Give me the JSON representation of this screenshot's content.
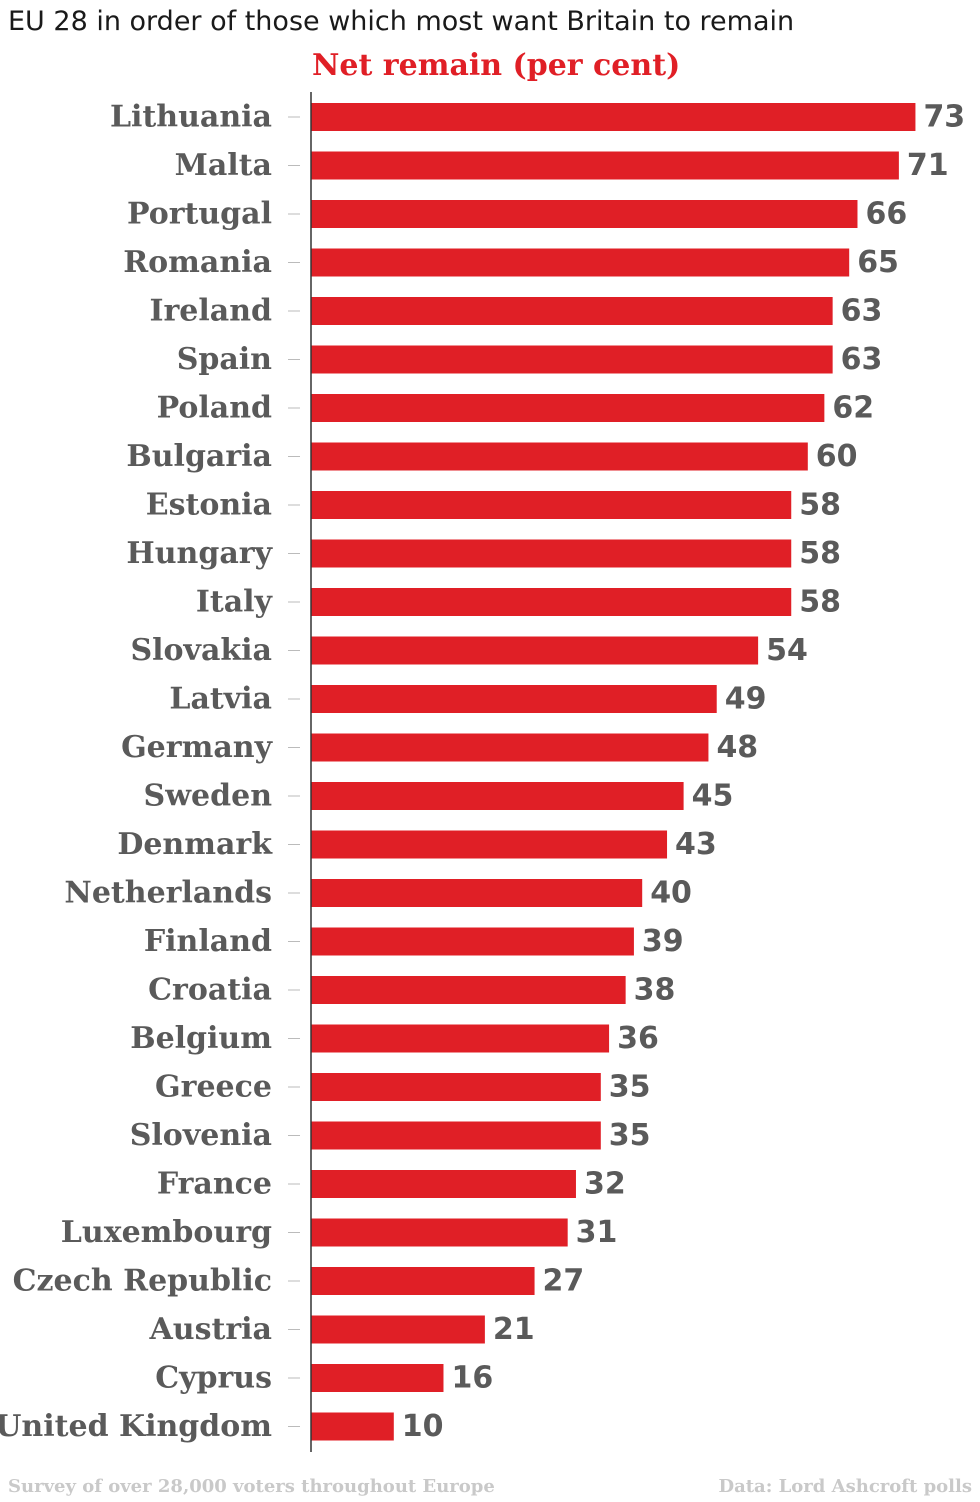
{
  "heading": "EU 28 in order of those which most want Britain to remain",
  "footer": {
    "survey_note": "Survey of over 28,000 voters throughout Europe",
    "source": "Data: Lord Ashcroft polls"
  },
  "colors": {
    "bar": "#e01f26",
    "label": "#5a5a5a",
    "axis": "#333333",
    "tick": "#bbbbbb",
    "footer": "#c9c9c9"
  },
  "chart_data": {
    "type": "bar",
    "orientation": "horizontal",
    "title": "Net remain (per cent)",
    "xlabel": "",
    "ylabel": "",
    "xlim": [
      0,
      73
    ],
    "grid": false,
    "legend": "none",
    "categories": [
      "Lithuania",
      "Malta",
      "Portugal",
      "Romania",
      "Ireland",
      "Spain",
      "Poland",
      "Bulgaria",
      "Estonia",
      "Hungary",
      "Italy",
      "Slovakia",
      "Latvia",
      "Germany",
      "Sweden",
      "Denmark",
      "Netherlands",
      "Finland",
      "Croatia",
      "Belgium",
      "Greece",
      "Slovenia",
      "France",
      "Luxembourg",
      "Czech Republic",
      "Austria",
      "Cyprus",
      "United Kingdom"
    ],
    "values": [
      73,
      71,
      66,
      65,
      63,
      63,
      62,
      60,
      58,
      58,
      58,
      54,
      49,
      48,
      45,
      43,
      40,
      39,
      38,
      36,
      35,
      35,
      32,
      31,
      27,
      21,
      16,
      10
    ]
  }
}
